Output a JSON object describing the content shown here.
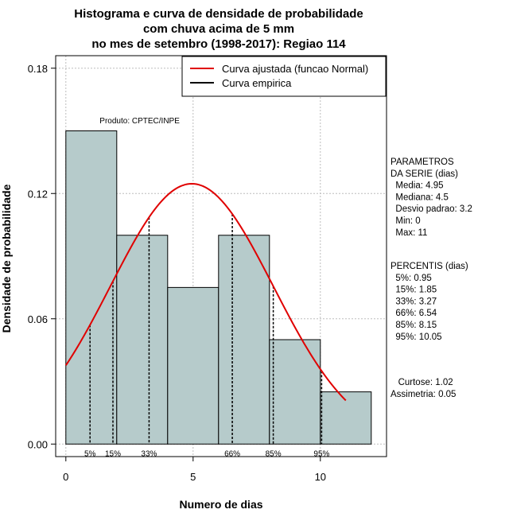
{
  "chart_data": {
    "type": "bar",
    "title_lines": [
      "Histograma e curva de densidade de probabilidade",
      "com chuva acima de 5 mm",
      "no mes de setembro (1998-2017): Regiao 114"
    ],
    "xlabel": "Numero de dias",
    "ylabel": "Densidade de probabilidade",
    "xlim": [
      -0.4,
      12.6
    ],
    "ylim": [
      -0.006,
      0.186
    ],
    "x_ticks": [
      0,
      5,
      10
    ],
    "x_tick_labels": [
      "0",
      "5",
      "10"
    ],
    "y_ticks": [
      0.0,
      0.06,
      0.12,
      0.18
    ],
    "y_tick_labels": [
      "0.00",
      "0.06",
      "0.12",
      "0.18"
    ],
    "grid": true,
    "bar_color": "#b6cbcb",
    "bins": [
      {
        "from": 0,
        "to": 2,
        "density": 0.15
      },
      {
        "from": 2,
        "to": 4,
        "density": 0.1
      },
      {
        "from": 4,
        "to": 6,
        "density": 0.075
      },
      {
        "from": 6,
        "to": 8,
        "density": 0.1
      },
      {
        "from": 8,
        "to": 10,
        "density": 0.05
      },
      {
        "from": 10,
        "to": 12,
        "density": 0.025
      }
    ],
    "normal_curve": {
      "mean": 4.95,
      "sd": 3.2,
      "x_from": 0,
      "x_to": 11,
      "color": "#e00000"
    },
    "percentile_lines": [
      {
        "label": "5%",
        "x": 0.95
      },
      {
        "label": "15%",
        "x": 1.85
      },
      {
        "label": "33%",
        "x": 3.27
      },
      {
        "label": "66%",
        "x": 6.54
      },
      {
        "label": "85%",
        "x": 8.15
      },
      {
        "label": "95%",
        "x": 10.05
      }
    ],
    "legend": {
      "position": "top-right",
      "items": [
        {
          "label": "Curva ajustada (funcao Normal)",
          "color": "#e00000"
        },
        {
          "label": "Curva empirica",
          "color": "#000000"
        }
      ]
    },
    "annotation": "Produto: CPTEC/INPE"
  },
  "side_panel": {
    "params": [
      "PARAMETROS",
      "DA SERIE (dias)",
      "  Media: 4.95",
      "  Mediana: 4.5",
      "  Desvio padrao: 3.2",
      "  Min: 0",
      "  Max: 11"
    ],
    "percentiles": [
      "PERCENTIS (dias)",
      "  5%: 0.95",
      "  15%: 1.85",
      "  33%: 3.27",
      "  66%: 6.54",
      "  85%: 8.15",
      "  95%: 10.05"
    ],
    "stats": [
      "   Curtose: 1.02",
      "Assimetria: 0.05"
    ]
  }
}
